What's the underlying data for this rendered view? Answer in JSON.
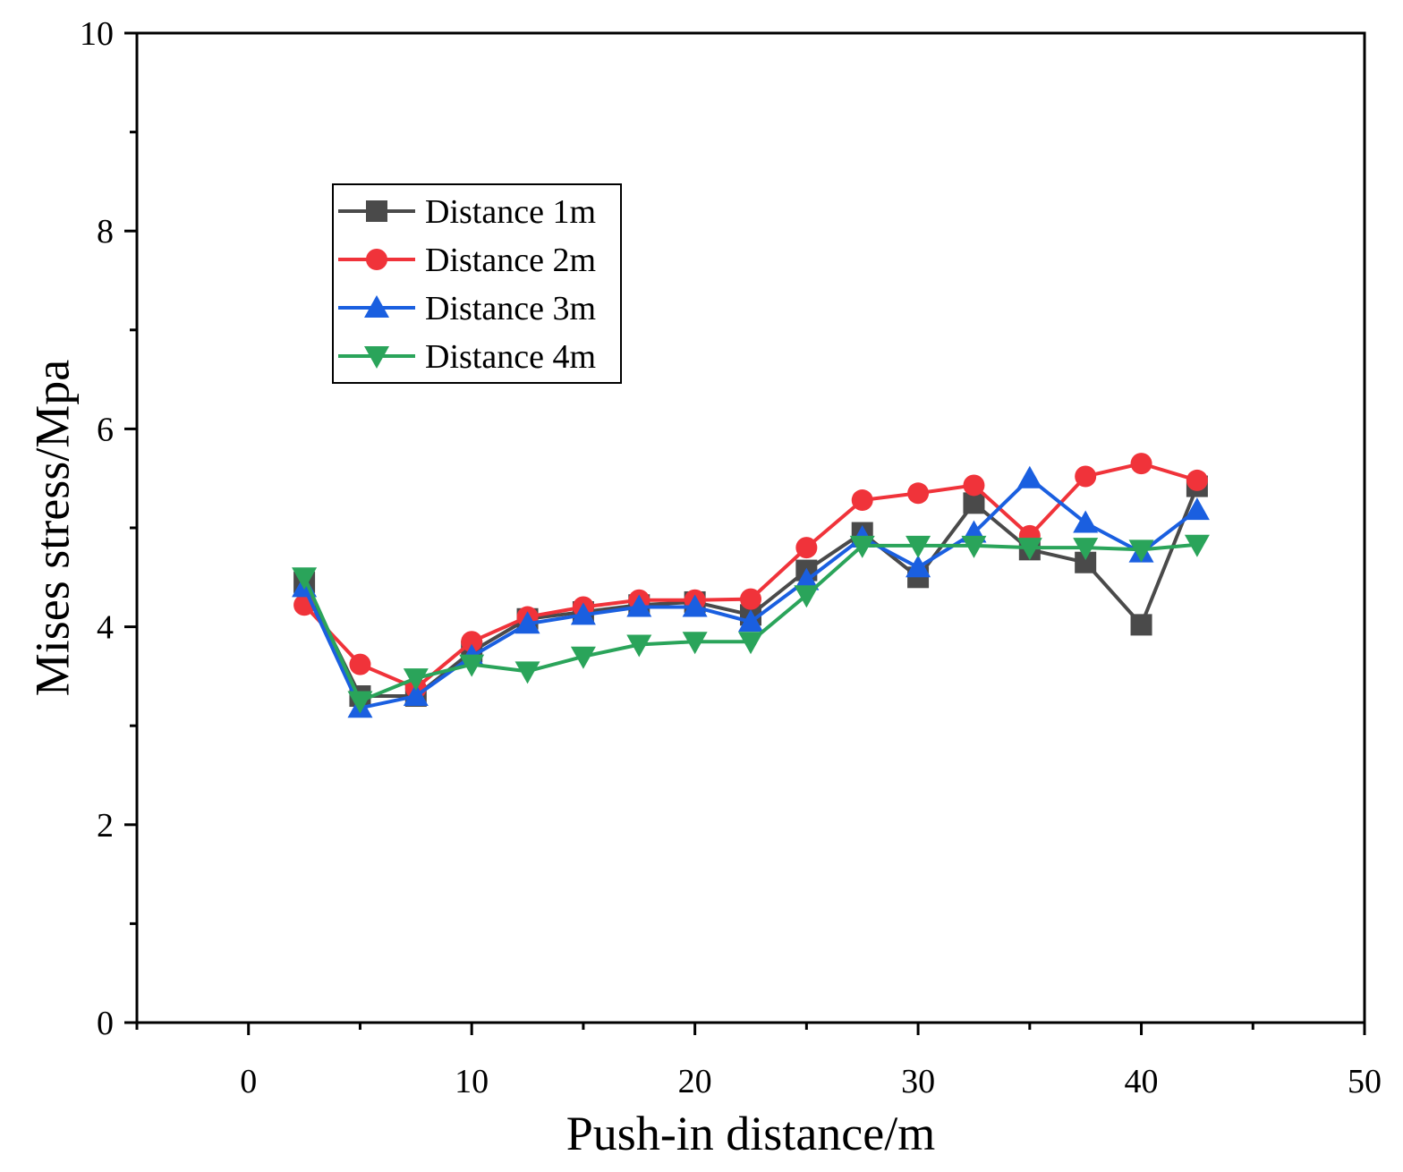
{
  "chart_data": {
    "type": "line",
    "title": "",
    "xlabel": "Push-in distance/m",
    "ylabel": "Mises stress/Mpa",
    "xlim": [
      -5,
      50
    ],
    "ylim": [
      0,
      10
    ],
    "xticks": [
      0,
      10,
      20,
      30,
      40,
      50
    ],
    "yticks": [
      0,
      2,
      4,
      6,
      8,
      10
    ],
    "x": [
      2.5,
      5,
      7.5,
      10,
      12.5,
      15,
      17.5,
      20,
      22.5,
      25,
      27.5,
      30,
      32.5,
      35,
      37.5,
      40,
      42.5
    ],
    "legend_position": "upper-left",
    "series": [
      {
        "name": "Distance 1m",
        "color": "#4a4a4a",
        "marker": "square",
        "values": [
          4.45,
          3.3,
          3.3,
          3.75,
          4.08,
          4.15,
          4.22,
          4.25,
          4.12,
          4.57,
          4.95,
          4.5,
          5.25,
          4.78,
          4.65,
          4.02,
          5.42
        ]
      },
      {
        "name": "Distance 2m",
        "color": "#f0333a",
        "marker": "circle",
        "values": [
          4.22,
          3.62,
          3.38,
          3.85,
          4.1,
          4.2,
          4.27,
          4.27,
          4.28,
          4.8,
          5.28,
          5.35,
          5.43,
          4.92,
          5.52,
          5.65,
          5.48
        ]
      },
      {
        "name": "Distance 3m",
        "color": "#1a5fe0",
        "marker": "triangle-up",
        "values": [
          4.4,
          3.18,
          3.3,
          3.7,
          4.03,
          4.12,
          4.2,
          4.2,
          4.05,
          4.47,
          4.9,
          4.6,
          4.95,
          5.5,
          5.05,
          4.75,
          5.18
        ]
      },
      {
        "name": "Distance 4m",
        "color": "#2aa45a",
        "marker": "triangle-down",
        "values": [
          4.5,
          3.25,
          3.48,
          3.62,
          3.55,
          3.7,
          3.82,
          3.85,
          3.85,
          4.32,
          4.82,
          4.82,
          4.82,
          4.8,
          4.8,
          4.78,
          4.83
        ]
      }
    ]
  }
}
